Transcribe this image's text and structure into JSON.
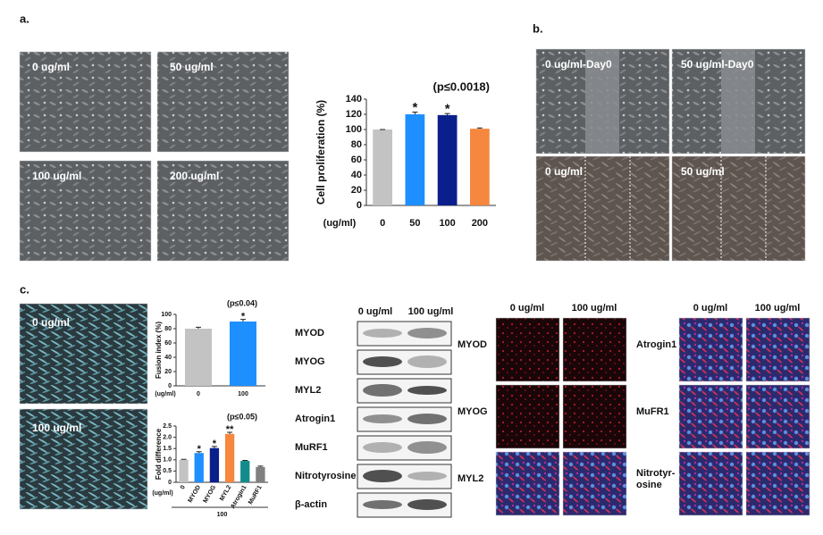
{
  "panels": {
    "a": "a.",
    "b": "b.",
    "c": "c."
  },
  "panel_a": {
    "images": [
      "0 ug/ml",
      "50 ug/ml",
      "100 ug/ml",
      "200 ug/ml"
    ]
  },
  "panel_b": {
    "images": [
      "0 ug/ml-Day0",
      "50 ug/ml-Day0",
      "0 ug/ml",
      "50 ug/ml"
    ]
  },
  "panel_c": {
    "images": [
      "0 ug/ml",
      "100 ug/ml"
    ],
    "western_blot": {
      "columns": [
        "0 ug/ml",
        "100 ug/ml"
      ],
      "rows": [
        "MYOD",
        "MYOG",
        "MYL2",
        "Atrogin1",
        "MuRF1",
        "Nitrotyrosine",
        "β-actin"
      ]
    },
    "immunofluorescence": [
      {
        "columns": [
          "0 ug/ml",
          "100 ug/ml"
        ],
        "rows": [
          [
            "MYOD"
          ],
          [
            "MYOG"
          ],
          [
            "MYL2"
          ]
        ]
      },
      {
        "columns": [
          "0 ug/ml",
          "100 ug/ml"
        ],
        "rows": [
          [
            "Atrogin1"
          ],
          [
            "MuFR1"
          ],
          [
            "Nitrotyr-",
            "osine"
          ]
        ]
      }
    ]
  },
  "chart_data": [
    {
      "type": "bar",
      "ylabel": "Cell proliferation (%)",
      "annotation": "(p≤0.0018)",
      "x_unit_label": "(ug/ml)",
      "categories": [
        "0",
        "50",
        "100",
        "200"
      ],
      "values": [
        100,
        120,
        119,
        101
      ],
      "errors": [
        0,
        3,
        2,
        1
      ],
      "colors": [
        "#c3c3c3",
        "#1e8fff",
        "#0b1f8c",
        "#f5873e"
      ],
      "significance": [
        null,
        "*",
        "*",
        null
      ],
      "ylim": [
        0,
        140
      ],
      "yticks": [
        0,
        20,
        40,
        60,
        80,
        100,
        120,
        140
      ]
    },
    {
      "type": "bar",
      "ylabel": "Fusion index (%)",
      "annotation": "(p≤0.04)",
      "x_unit_label": "(ug/ml)",
      "categories": [
        "0",
        "100"
      ],
      "values": [
        80,
        90
      ],
      "errors": [
        2,
        3
      ],
      "colors": [
        "#c3c3c3",
        "#1e8fff"
      ],
      "significance": [
        null,
        "*"
      ],
      "ylim": [
        0,
        100
      ],
      "yticks": [
        0,
        20,
        40,
        60,
        80,
        100
      ]
    },
    {
      "type": "bar",
      "ylabel": "Fold difference",
      "annotation": "(p≤0.05)",
      "x_unit_label": "(ug/ml)",
      "group_label": "100",
      "categories": [
        "0",
        "MYOD",
        "MYOG",
        "MYL2",
        "Atrogin1",
        "MuRF1"
      ],
      "values": [
        1.0,
        1.3,
        1.52,
        2.15,
        0.95,
        0.68
      ],
      "errors": [
        0.02,
        0.06,
        0.07,
        0.07,
        0.02,
        0.04
      ],
      "colors": [
        "#c3c3c3",
        "#1e8fff",
        "#0b1f8c",
        "#f5873e",
        "#138b8b",
        "#808080"
      ],
      "significance": [
        null,
        "*",
        "*",
        "**",
        null,
        null
      ],
      "ylim": [
        0,
        2.5
      ],
      "yticks": [
        0,
        {
          "value": 0.5,
          "label": "0.5"
        },
        {
          "value": 1,
          "label": "1.0"
        },
        {
          "value": 1.5,
          "label": "1.5"
        },
        {
          "value": 2,
          "label": "2.0"
        },
        {
          "value": 2.5,
          "label": "2.5"
        }
      ]
    }
  ]
}
